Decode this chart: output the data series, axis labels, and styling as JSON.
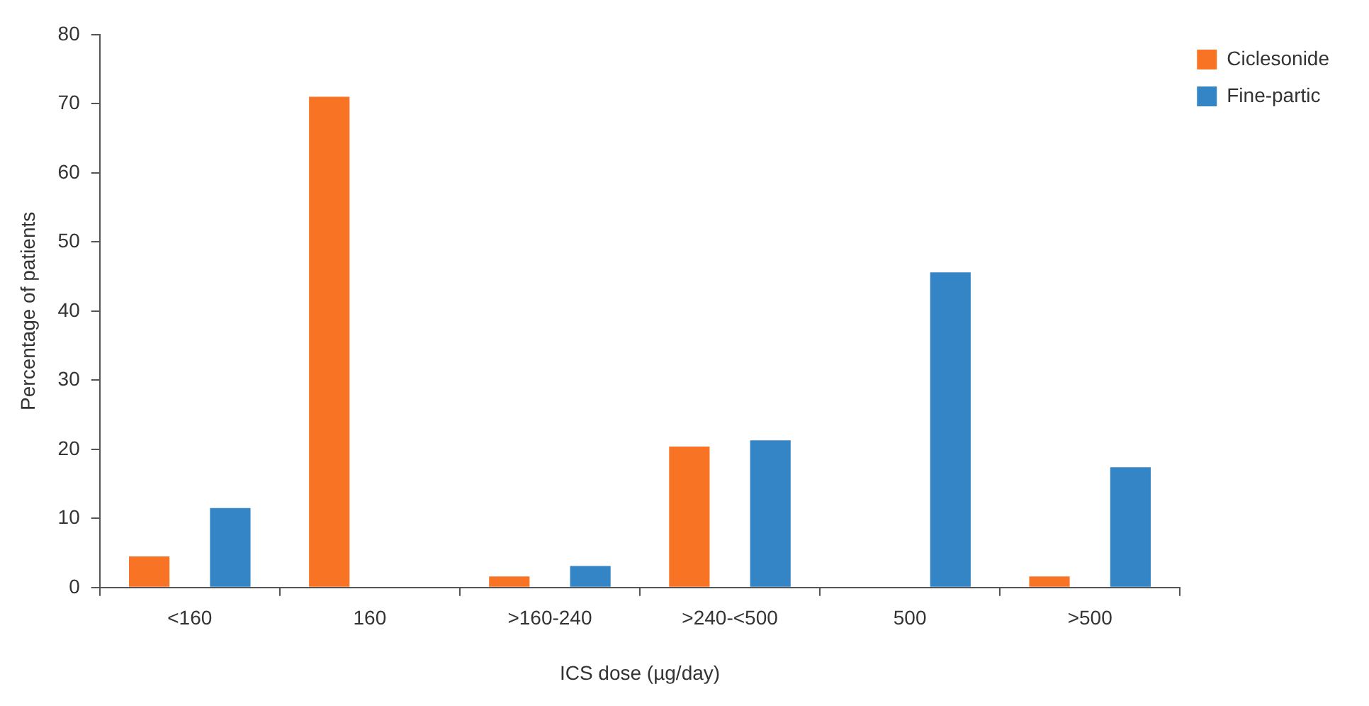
{
  "chart_data": {
    "type": "bar",
    "xlabel": "ICS dose (µg/day)",
    "ylabel": "Percentage of patients",
    "categories": [
      "<160",
      "160",
      ">160-240",
      ">240-<500",
      "500",
      ">500"
    ],
    "series": [
      {
        "name": "Ciclesonide",
        "color": "#f97325",
        "values": [
          4.5,
          71,
          1.6,
          20.4,
          0,
          1.6
        ]
      },
      {
        "name": "Fine-partic",
        "color": "#3385c6",
        "values": [
          11.5,
          0,
          3.1,
          21.3,
          45.6,
          17.4
        ]
      }
    ],
    "ylim": [
      0,
      80
    ],
    "yticks": [
      0,
      10,
      20,
      30,
      40,
      50,
      60,
      70,
      80
    ],
    "grid": false,
    "legend": "top right"
  }
}
